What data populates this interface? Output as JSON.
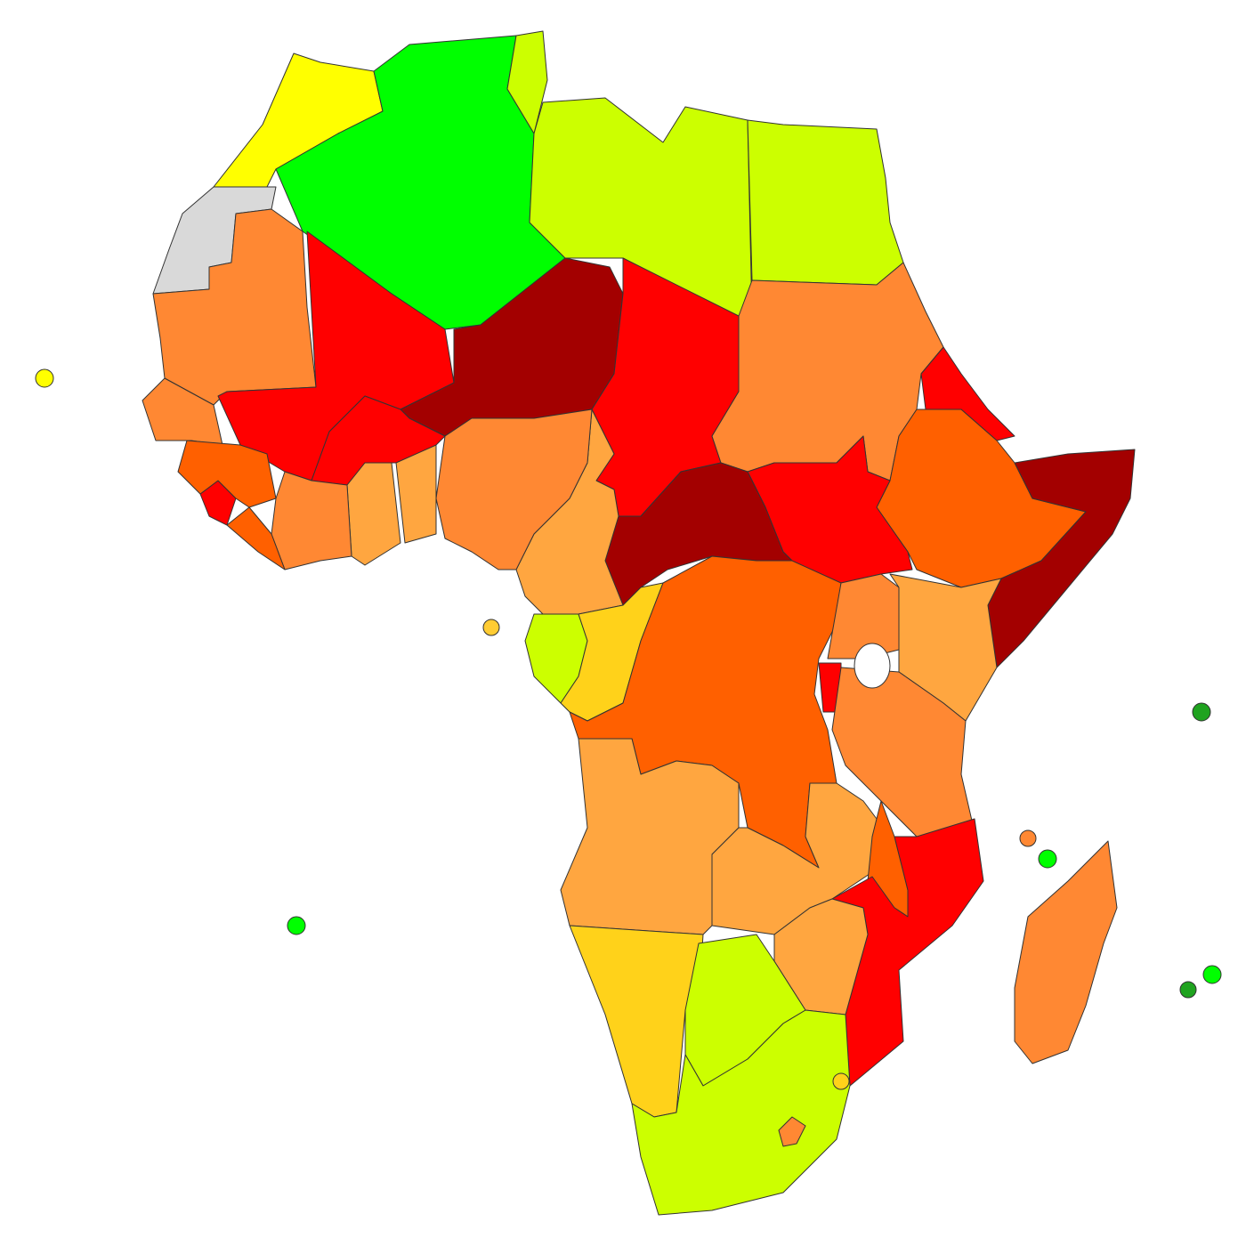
{
  "regions": [
    {
      "color": "#ffff00"
    },
    {
      "color": "#d9d9d9"
    },
    {
      "color": "#00ff00"
    },
    {
      "color": "#ccff00"
    },
    {
      "color": "#ccff00"
    },
    {
      "color": "#ccff00"
    },
    {
      "color": "#ff8833"
    },
    {
      "color": "#ff0000"
    },
    {
      "color": "#a30000"
    },
    {
      "color": "#ff0000"
    },
    {
      "color": "#ff8833"
    },
    {
      "color": "#ff0000"
    },
    {
      "color": "#ff6000"
    },
    {
      "color": "#a30000"
    },
    {
      "color": "#ff0000"
    },
    {
      "color": "#a30000"
    },
    {
      "color": "#ffa640"
    },
    {
      "color": "#ff8833"
    },
    {
      "color": "#ff0000"
    },
    {
      "color": "#ffa640"
    },
    {
      "color": "#ffa640"
    },
    {
      "color": "#ff8833"
    },
    {
      "color": "#ff6000"
    },
    {
      "color": "#ff0000"
    },
    {
      "color": "#ff8833"
    },
    {
      "color": "#ff6000"
    },
    {
      "color": "#ccff00"
    },
    {
      "color": "#ffd21a"
    },
    {
      "color": "#ff6000"
    },
    {
      "color": "#ff8833"
    },
    {
      "color": "#ffa640"
    },
    {
      "color": "#ff0000"
    },
    {
      "color": "#ff8833"
    },
    {
      "color": "#ffa640"
    },
    {
      "color": "#ffa640"
    },
    {
      "color": "#ff6000"
    },
    {
      "color": "#ff0000"
    },
    {
      "color": "#ffa640"
    },
    {
      "color": "#ffd21a"
    },
    {
      "color": "#ccff00"
    },
    {
      "color": "#ccff00"
    },
    {
      "color": "#ff8833"
    },
    {
      "color": "#ff8833"
    },
    {
      "color": "#1fa31f"
    },
    {
      "color": "#00ff00"
    },
    {
      "color": "#ff8833"
    },
    {
      "color": "#00ff00"
    },
    {
      "color": "#1fa31f"
    },
    {
      "color": "#00ff00"
    },
    {
      "color": "#ffff00"
    },
    {
      "color": "#ffcc33"
    },
    {
      "color": "#ffd21a"
    }
  ]
}
